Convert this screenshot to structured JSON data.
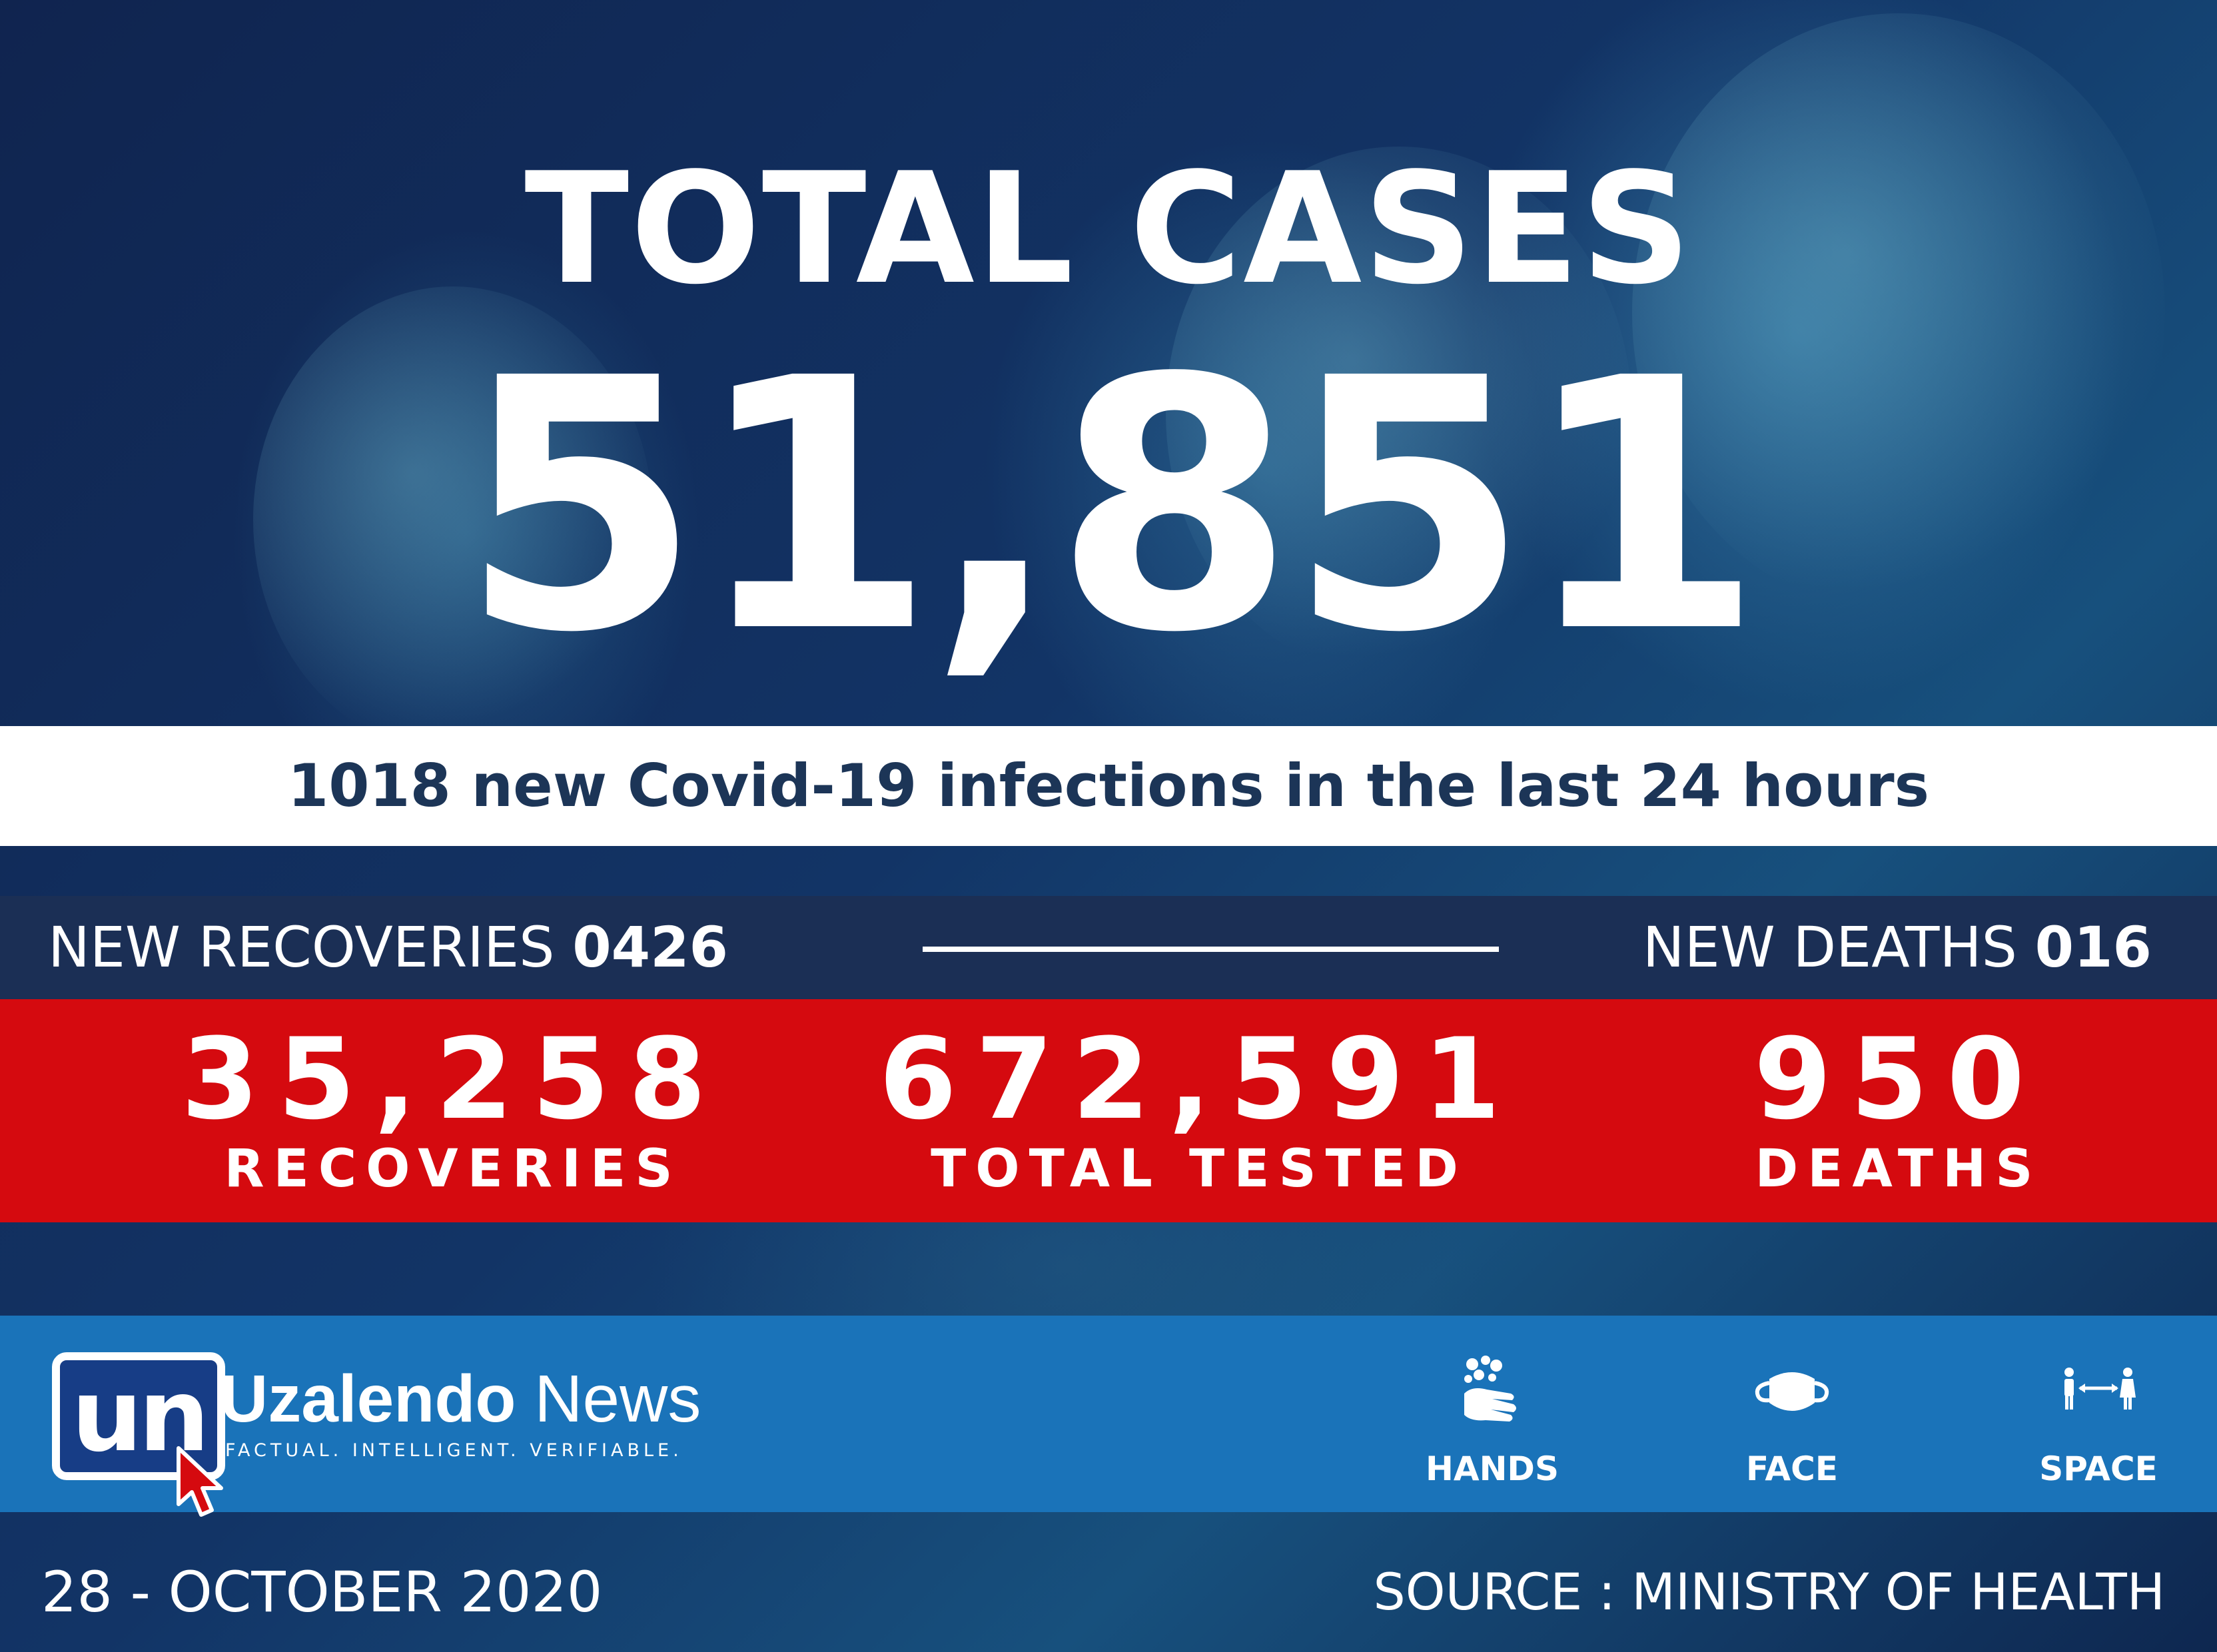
{
  "headline": {
    "title": "TOTAL CASES",
    "total_cases": "51,851"
  },
  "subheadline": "1018 new Covid-19 infections in the last 24 hours",
  "daily": {
    "recoveries_label": "NEW RECOVERIES",
    "recoveries_value": "0426",
    "deaths_label": "NEW DEATHS",
    "deaths_value": "016"
  },
  "stats": [
    {
      "value": "35,258",
      "label": "RECOVERIES"
    },
    {
      "value": "672,591",
      "label": "TOTAL TESTED"
    },
    {
      "value": "950",
      "label": "DEATHS"
    }
  ],
  "brand": {
    "logo_mark": "un",
    "name_bold": "Uzalendo",
    "name_light": "News",
    "tagline": "FACTUAL. INTELLIGENT. VERIFIABLE."
  },
  "tips": [
    {
      "label": "HANDS",
      "icon": "hand-washing-icon"
    },
    {
      "label": "FACE",
      "icon": "face-mask-icon"
    },
    {
      "label": "SPACE",
      "icon": "social-distance-icon"
    }
  ],
  "footer": {
    "date": "28 - OCTOBER 2020",
    "source": "SOURCE : MINISTRY OF HEALTH"
  },
  "colors": {
    "background": "#10244f",
    "accent_red": "#d50a0f",
    "band_blue": "#1a73b9",
    "band_navy": "#1b2f55",
    "subheadline_text": "#1c3557",
    "white": "#ffffff"
  }
}
